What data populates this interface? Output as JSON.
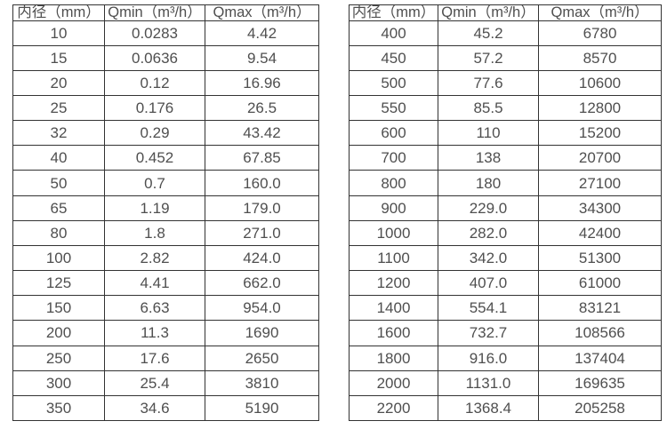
{
  "page": {
    "background": "#ffffff",
    "text_color": "#4f4f4f",
    "border_color": "#333333"
  },
  "tables": [
    {
      "name": "flow-spec-small-diameters",
      "headers": [
        "内径（mm）",
        "Qmin（m³/h）",
        "Qmax（m³/h）"
      ],
      "rows": [
        [
          "10",
          "0.0283",
          "4.42"
        ],
        [
          "15",
          "0.0636",
          "9.54"
        ],
        [
          "20",
          "0.12",
          "16.96"
        ],
        [
          "25",
          "0.176",
          "26.5"
        ],
        [
          "32",
          "0.29",
          "43.42"
        ],
        [
          "40",
          "0.452",
          "67.85"
        ],
        [
          "50",
          "0.7",
          "160.0"
        ],
        [
          "65",
          "1.19",
          "179.0"
        ],
        [
          "80",
          "1.8",
          "271.0"
        ],
        [
          "100",
          "2.82",
          "424.0"
        ],
        [
          "125",
          "4.41",
          "662.0"
        ],
        [
          "150",
          "6.63",
          "954.0"
        ],
        [
          "200",
          "11.3",
          "1690"
        ],
        [
          "250",
          "17.6",
          "2650"
        ],
        [
          "300",
          "25.4",
          "3810"
        ],
        [
          "350",
          "34.6",
          "5190"
        ]
      ]
    },
    {
      "name": "flow-spec-large-diameters",
      "headers": [
        "内径（mm）",
        "Qmin（m³/h）",
        "Qmax（m³/h）"
      ],
      "rows": [
        [
          "400",
          "45.2",
          "6780"
        ],
        [
          "450",
          "57.2",
          "8570"
        ],
        [
          "500",
          "77.6",
          "10600"
        ],
        [
          "550",
          "85.5",
          "12800"
        ],
        [
          "600",
          "110",
          "15200"
        ],
        [
          "700",
          "138",
          "20700"
        ],
        [
          "800",
          "180",
          "27100"
        ],
        [
          "900",
          "229.0",
          "34300"
        ],
        [
          "1000",
          "282.0",
          "42400"
        ],
        [
          "1100",
          "342.0",
          "51300"
        ],
        [
          "1200",
          "407.0",
          "61000"
        ],
        [
          "1400",
          "554.1",
          "83121"
        ],
        [
          "1600",
          "732.7",
          "108566"
        ],
        [
          "1800",
          "916.0",
          "137404"
        ],
        [
          "2000",
          "1131.0",
          "169635"
        ],
        [
          "2200",
          "1368.4",
          "205258"
        ]
      ]
    }
  ]
}
